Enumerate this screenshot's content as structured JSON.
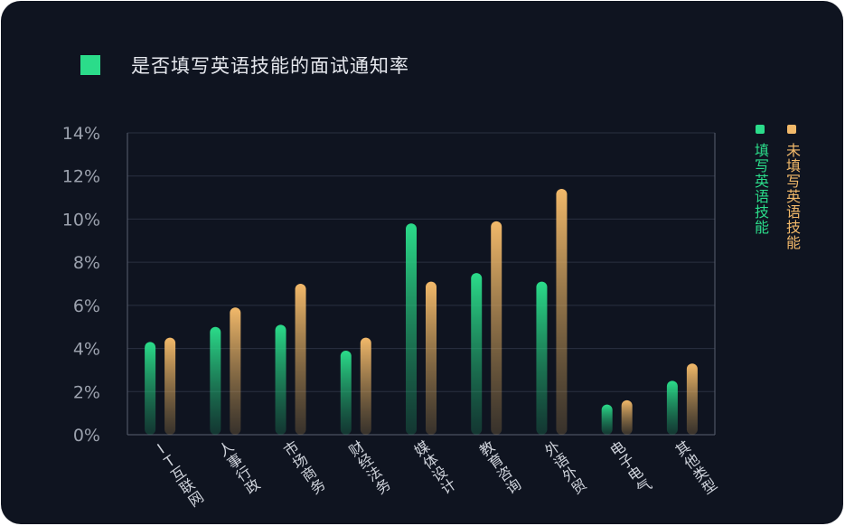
{
  "colors": {
    "background": "#0f1420",
    "series_1": "#2bdc8a",
    "series_2": "#f2b96a",
    "grid": "#2a3040",
    "axis": "#5a6070"
  },
  "chart_data": {
    "type": "bar",
    "title": "是否填写英语技能的面试通知率",
    "categories": [
      "IT互联网",
      "人事行政",
      "市场商务",
      "财经法务",
      "媒体设计",
      "教育咨询",
      "外语外贸",
      "电子电气",
      "其他类型"
    ],
    "series": [
      {
        "name": "填写英语技能",
        "values": [
          4.3,
          5.0,
          5.1,
          3.9,
          9.8,
          7.5,
          7.1,
          1.4,
          2.5
        ]
      },
      {
        "name": "未填写英语技能",
        "values": [
          4.5,
          5.9,
          7.0,
          4.5,
          7.1,
          9.9,
          11.4,
          1.6,
          3.3
        ]
      }
    ],
    "xlabel": "",
    "ylabel": "",
    "ylim": [
      0,
      14
    ],
    "yticks": [
      "0%",
      "2%",
      "4%",
      "6%",
      "8%",
      "10%",
      "12%",
      "14%"
    ],
    "grid": true,
    "legend_position": "right"
  }
}
